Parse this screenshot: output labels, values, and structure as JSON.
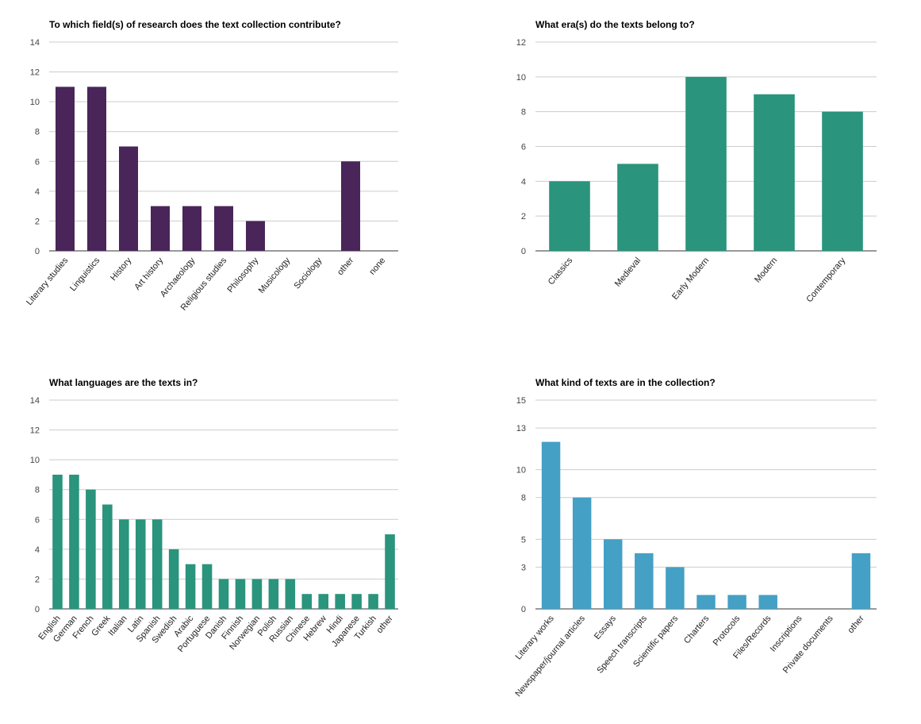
{
  "chart_data": [
    {
      "type": "bar",
      "title": "To which field(s) of research does the text collection contribute?",
      "categories": [
        "Literary studies",
        "Linguistics",
        "History",
        "Art history",
        "Archaeology",
        "Religious studies",
        "Philosophy",
        "Musicology",
        "Sociology",
        "other",
        "none"
      ],
      "values": [
        11,
        11,
        7,
        3,
        3,
        3,
        2,
        0,
        0,
        6,
        0
      ],
      "yticks": [
        0,
        2,
        4,
        6,
        8,
        10,
        12,
        14
      ],
      "ylim": [
        0,
        14
      ],
      "color": "#4a2559",
      "grid": true
    },
    {
      "type": "bar",
      "title": "What era(s) do the texts belong to?",
      "categories": [
        "Classics",
        "Medieval",
        "Early Modern",
        "Modern",
        "Contemporary"
      ],
      "values": [
        4,
        5,
        10,
        9,
        8
      ],
      "yticks": [
        0,
        2,
        4,
        6,
        8,
        10,
        12
      ],
      "ylim": [
        0,
        12
      ],
      "color": "#2a947c",
      "grid": true
    },
    {
      "type": "bar",
      "title": "What languages are the texts in?",
      "categories": [
        "English",
        "German",
        "French",
        "Greek",
        "Italian",
        "Latin",
        "Spanish",
        "Swedish",
        "Arabic",
        "Portuguese",
        "Danish",
        "Finnish",
        "Norwegian",
        "Polish",
        "Russian",
        "Chinese",
        "Hebrew",
        "Hindi",
        "Japanese",
        "Turkish",
        "other"
      ],
      "values": [
        9,
        9,
        8,
        7,
        6,
        6,
        6,
        4,
        3,
        3,
        2,
        2,
        2,
        2,
        2,
        1,
        1,
        1,
        1,
        1,
        5
      ],
      "yticks": [
        0,
        2,
        4,
        6,
        8,
        10,
        12,
        14
      ],
      "ylim": [
        0,
        14
      ],
      "color": "#2a947c",
      "grid": true
    },
    {
      "type": "bar",
      "title": "What kind of texts are in the collection?",
      "categories": [
        "Literary works",
        "Newspaper/journal articles",
        "Essays",
        "Speech transcripts",
        "Scientific papers",
        "Charters",
        "Protocols",
        "Files/Records",
        "Inscriptions",
        "Private documents",
        "other"
      ],
      "values": [
        12,
        8,
        5,
        4,
        3,
        1,
        1,
        1,
        0,
        0,
        4
      ],
      "yticks": [
        0,
        3,
        5,
        8,
        10,
        13,
        15
      ],
      "ylim": [
        0,
        15
      ],
      "color": "#44a0c4",
      "grid": true
    }
  ]
}
